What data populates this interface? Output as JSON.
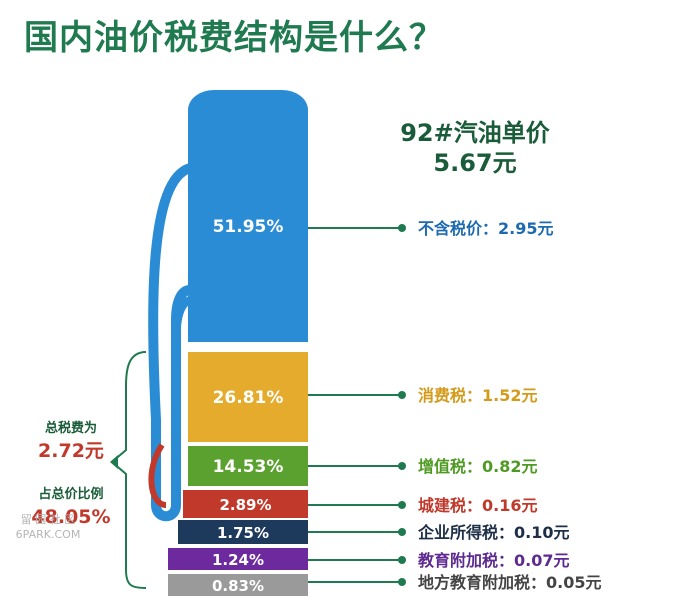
{
  "title": "国内油价税费结构是什么？",
  "price": {
    "line1": "92#汽油单价",
    "line2": "5.67元"
  },
  "totals": {
    "tax_label": "总税费为",
    "tax_value": "2.72元",
    "ratio_label": "占总价比例",
    "ratio_value": "48.05%"
  },
  "watermark": {
    "line1": "留 园 社 区",
    "line2": "6PARK.COM"
  },
  "colors": {
    "pump_blue": "#2b8cd6",
    "tax_yellow": "#e4ab2c",
    "vat_green": "#5aa12f",
    "city_red": "#c0392b",
    "corp_navy": "#1d3a5c",
    "edu_purple": "#6c2a9e",
    "local_gray": "#9a9a9a",
    "accent_green": "#1f7a4f"
  },
  "chart_data": {
    "type": "bar",
    "title": "国内油价税费结构是什么？",
    "total": 5.67,
    "categories": [
      "不含税价",
      "消费税",
      "增值税",
      "城建税",
      "企业所得税",
      "教育附加税",
      "地方教育附加税"
    ],
    "series": [
      {
        "values": [
          2.95,
          1.52,
          0.82,
          0.16,
          0.1,
          0.07,
          0.05
        ]
      }
    ],
    "segments": [
      {
        "pct": "51.95%",
        "label": "不含税价：2.95元",
        "value": 2.95,
        "share": 51.95,
        "color": "#2b8cd6",
        "label_color": "#1d6ab0"
      },
      {
        "pct": "26.81%",
        "label": "消费税：1.52元",
        "value": 1.52,
        "share": 26.81,
        "color": "#e4ab2c",
        "label_color": "#d49a1a"
      },
      {
        "pct": "14.53%",
        "label": "增值税：0.82元",
        "value": 0.82,
        "share": 14.53,
        "color": "#5aa12f",
        "label_color": "#4f9a22"
      },
      {
        "pct": "2.89%",
        "label": "城建税：0.16元",
        "value": 0.16,
        "share": 2.89,
        "color": "#c0392b",
        "label_color": "#c0392b"
      },
      {
        "pct": "1.75%",
        "label": "企业所得税：0.10元",
        "value": 0.1,
        "share": 1.75,
        "color": "#1d3a5c",
        "label_color": "#1d2f47"
      },
      {
        "pct": "1.24%",
        "label": "教育附加税：0.07元",
        "value": 0.07,
        "share": 1.24,
        "color": "#6c2a9e",
        "label_color": "#5e2a90"
      },
      {
        "pct": "0.83%",
        "label": "地方教育附加税：0.05元",
        "value": 0.05,
        "share": 0.83,
        "color": "#9a9a9a",
        "label_color": "#444444"
      }
    ]
  }
}
